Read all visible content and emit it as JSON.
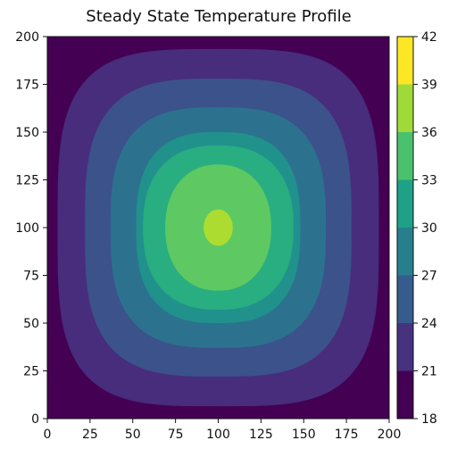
{
  "chart_data": {
    "type": "heatmap",
    "subtype": "filled-contour",
    "title": "Steady State Temperature Profile",
    "xlabel": "",
    "ylabel": "",
    "xlim": [
      0,
      200
    ],
    "ylim": [
      0,
      200
    ],
    "x_ticks": [
      0,
      25,
      50,
      75,
      100,
      125,
      150,
      175,
      200
    ],
    "y_ticks": [
      0,
      25,
      50,
      75,
      100,
      125,
      150,
      175,
      200
    ],
    "grid": false,
    "colorbar": {
      "levels": [
        18,
        21,
        24,
        27,
        30,
        33,
        36,
        39,
        42
      ],
      "colors": [
        "#440154",
        "#46327e",
        "#365c8d",
        "#277f8e",
        "#1fa187",
        "#4ac16d",
        "#a0da39",
        "#fde725"
      ],
      "band_colors_used": [
        "#440154",
        "#472d7b",
        "#3b528b",
        "#2c728e",
        "#21918c",
        "#28ae80",
        "#5ec962",
        "#addc30",
        "#d8e219"
      ]
    },
    "contours": [
      {
        "level_range": [
          21,
          24
        ],
        "cx": 100,
        "cy": 100,
        "hx": 94,
        "hy": 93.5
      },
      {
        "level_range": [
          24,
          27
        ],
        "cx": 100,
        "cy": 100,
        "hx": 78,
        "hy": 78
      },
      {
        "level_range": [
          27,
          30
        ],
        "cx": 100,
        "cy": 100,
        "hx": 63,
        "hy": 63
      },
      {
        "level_range": [
          30,
          33
        ],
        "cx": 100,
        "cy": 100,
        "hx": 48,
        "hy": 50
      },
      {
        "level_range": [
          33,
          36
        ],
        "cx": 100,
        "cy": 100,
        "hx": 44,
        "hy": 43
      },
      {
        "level_range": [
          36,
          39
        ],
        "cx": 100,
        "cy": 100,
        "hx": 31,
        "hy": 33
      },
      {
        "level_range": [
          39,
          42
        ],
        "cx": 100,
        "cy": 100,
        "hx": 8.5,
        "hy": 9.5
      }
    ],
    "background_level_range": [
      18,
      21
    ]
  }
}
